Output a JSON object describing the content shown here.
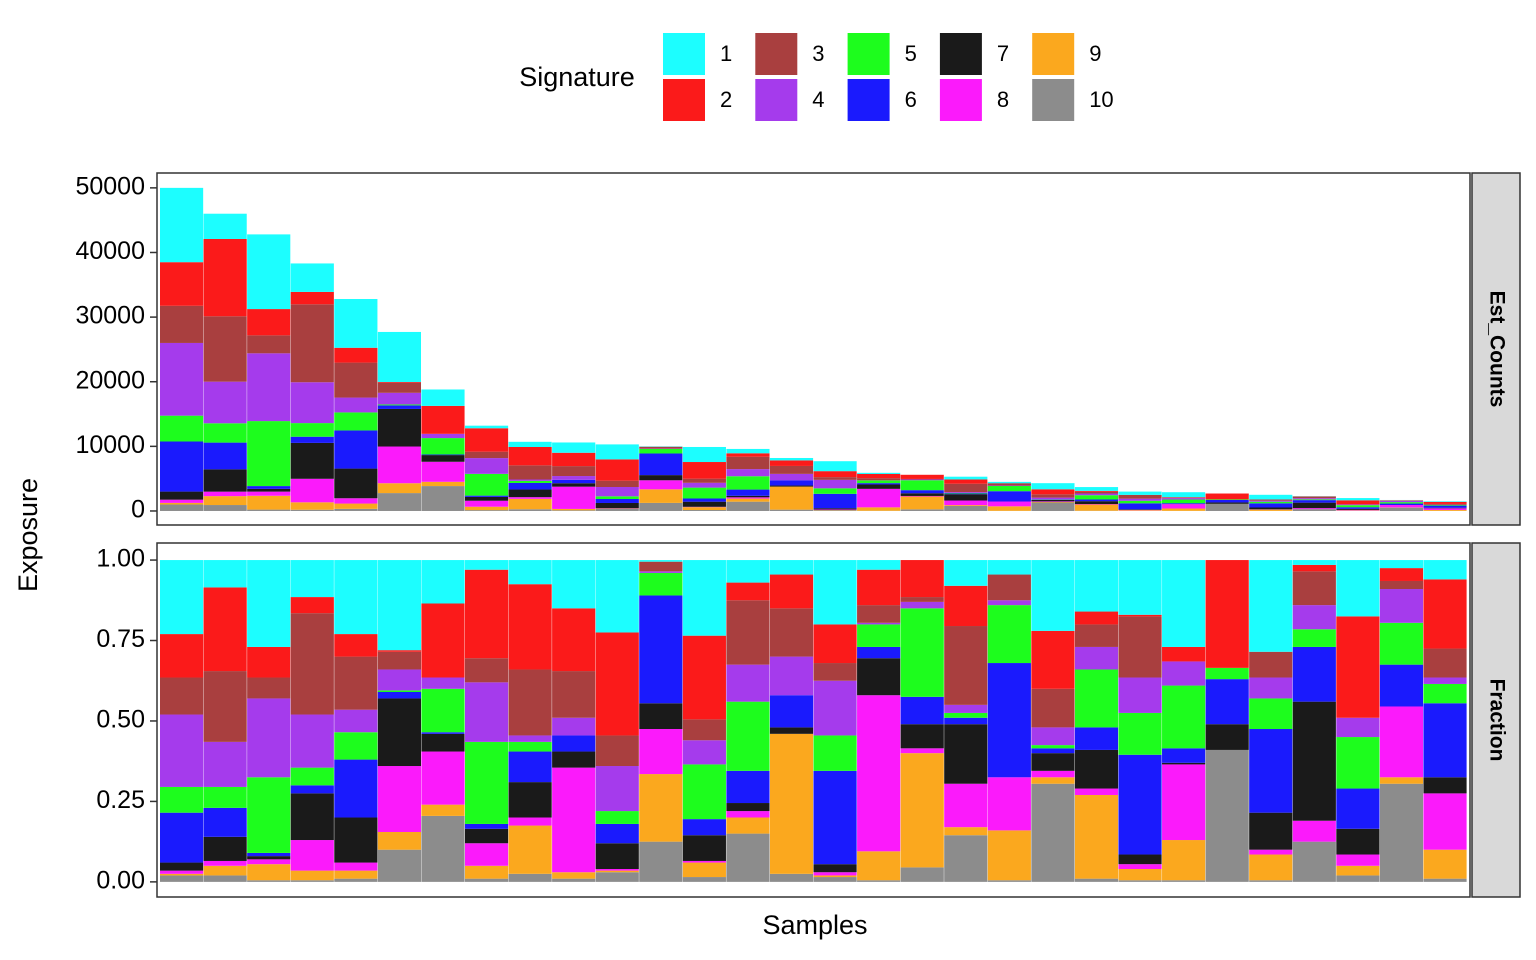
{
  "legend": {
    "title": "Signature",
    "items": [
      {
        "name": "1",
        "color": "#1cfeff"
      },
      {
        "name": "2",
        "color": "#fb1a1a"
      },
      {
        "name": "3",
        "color": "#a93f3f"
      },
      {
        "name": "4",
        "color": "#a53bec"
      },
      {
        "name": "5",
        "color": "#1dfd1d"
      },
      {
        "name": "6",
        "color": "#1a1afd"
      },
      {
        "name": "7",
        "color": "#1a1a1a"
      },
      {
        "name": "8",
        "color": "#fb1afb"
      },
      {
        "name": "9",
        "color": "#fba81e"
      },
      {
        "name": "10",
        "color": "#8c8c8c"
      }
    ]
  },
  "x_label": "Samples",
  "y_label": "Exposure",
  "chart_data": [
    {
      "type": "bar",
      "stacked": true,
      "strip": "Est_Counts",
      "ylim": [
        -2170,
        52300
      ],
      "yticks": [
        0,
        10000,
        20000,
        30000,
        40000,
        50000
      ],
      "categories": [
        null,
        null,
        null,
        null,
        null,
        null,
        null,
        null,
        null,
        null,
        null,
        null,
        null,
        null,
        null,
        null,
        null,
        null,
        null,
        null,
        null,
        null,
        null,
        null,
        null,
        null,
        null,
        null,
        null,
        null
      ],
      "series": [
        {
          "values": [
            11500,
            3910,
            11556,
            4405,
            7544,
            7756,
            2538,
            396,
            803,
            1590,
            2318,
            50,
            2327,
            672,
            369,
            1540,
            177,
            0,
            424,
            203,
            946,
            592,
            510,
            783,
            0,
            713,
            35,
            350,
            43,
            90
          ]
        },
        {
          "values": [
            6750,
            11960,
            4066,
            1915,
            2296,
            139,
            4324,
            3630,
            2836,
            2067,
            3296,
            0,
            2574,
            528,
            861,
            924,
            649,
            644,
            663,
            0,
            774,
            148,
            15,
            131,
            905,
            0,
            46,
            630,
            68,
            323
          ]
        },
        {
          "values": [
            5750,
            10120,
            2782,
            12065,
            5412,
            1524,
            0,
            990,
            2194,
            1537,
            979,
            300,
            644,
            1920,
            1230,
            424,
            325,
            84,
            1299,
            360,
            516,
            259,
            570,
            0,
            0,
            200,
            242,
            0,
            43,
            135
          ]
        },
        {
          "values": [
            11250,
            6440,
            10486,
            6320,
            2296,
            1801,
            658,
            2442,
            214,
            583,
            1442,
            50,
            743,
            1104,
            984,
            1309,
            30,
            112,
            133,
            68,
            237,
            259,
            330,
            218,
            0,
            163,
            173,
            120,
            179,
            30
          ]
        },
        {
          "values": [
            4000,
            2990,
            10058,
            2107,
            2788,
            139,
            2538,
            3366,
            321,
            0,
            412,
            700,
            1683,
            2064,
            0,
            847,
            413,
            1540,
            80,
            810,
            43,
            666,
            390,
            566,
            95,
            238,
            127,
            320,
            221,
            90
          ]
        },
        {
          "values": [
            7750,
            4140,
            428,
            958,
            5904,
            554,
            94,
            198,
            1017,
            530,
            618,
            3350,
            495,
            960,
            820,
            2233,
            207,
            476,
            106,
            1598,
            65,
            259,
            930,
            131,
            378,
            650,
            391,
            250,
            221,
            345
          ]
        },
        {
          "values": [
            1250,
            3450,
            428,
            5554,
            4592,
            5817,
            1034,
            594,
            1177,
            530,
            824,
            800,
            792,
            240,
            164,
            193,
            679,
            420,
            981,
            0,
            237,
            444,
            90,
            15,
            216,
            288,
            851,
            160,
            0,
            75
          ]
        },
        {
          "values": [
            500,
            690,
            642,
            3639,
            820,
            5679,
            3102,
            924,
            268,
            3445,
            52,
            1400,
            50,
            192,
            0,
            77,
            2862,
            84,
            716,
            743,
            86,
            74,
            45,
            682,
            0,
            38,
            150,
            70,
            374,
            263
          ]
        },
        {
          "values": [
            250,
            1380,
            2140,
            1149,
            820,
            1524,
            658,
            528,
            1605,
            212,
            52,
            2100,
            446,
            480,
            3567,
            39,
            531,
            1988,
            133,
            698,
            86,
            962,
            105,
            363,
            0,
            200,
            0,
            60,
            34,
            135
          ]
        },
        {
          "values": [
            1000,
            920,
            214,
            192,
            328,
            2770,
            3854,
            132,
            268,
            106,
            309,
            1250,
            149,
            1440,
            205,
            116,
            30,
            252,
            769,
            23,
            1312,
            37,
            15,
            15,
            1107,
            13,
            288,
            40,
            519,
            15
          ]
        }
      ]
    },
    {
      "type": "bar",
      "stacked": true,
      "strip": "Fraction",
      "ylim": [
        -0.047,
        1.053
      ],
      "yticks": [
        {
          "value": 0,
          "label": "0.00"
        },
        {
          "value": 0.25,
          "label": "0.25"
        },
        {
          "value": 0.5,
          "label": "0.50"
        },
        {
          "value": 0.75,
          "label": "0.75"
        },
        {
          "value": 1,
          "label": "1.00"
        }
      ],
      "categories": [
        null,
        null,
        null,
        null,
        null,
        null,
        null,
        null,
        null,
        null,
        null,
        null,
        null,
        null,
        null,
        null,
        null,
        null,
        null,
        null,
        null,
        null,
        null,
        null,
        null,
        null,
        null,
        null,
        null,
        null
      ],
      "series": [
        {
          "values": [
            0.23,
            0.085,
            0.27,
            0.115,
            0.23,
            0.28,
            0.135,
            0.03,
            0.075,
            0.15,
            0.225,
            0.005,
            0.235,
            0.07,
            0.045,
            0.2,
            0.03,
            0,
            0.08,
            0.045,
            0.22,
            0.16,
            0.17,
            0.27,
            0,
            0.285,
            0.015,
            0.175,
            0.025,
            0.06
          ]
        },
        {
          "values": [
            0.135,
            0.26,
            0.095,
            0.05,
            0.07,
            0.005,
            0.23,
            0.275,
            0.265,
            0.195,
            0.32,
            0,
            0.26,
            0.055,
            0.105,
            0.12,
            0.11,
            0.115,
            0.125,
            0,
            0.18,
            0.04,
            0.005,
            0.045,
            0.335,
            0,
            0.02,
            0.315,
            0.04,
            0.215
          ]
        },
        {
          "values": [
            0.115,
            0.22,
            0.065,
            0.315,
            0.165,
            0.055,
            0,
            0.075,
            0.205,
            0.145,
            0.095,
            0.03,
            0.065,
            0.2,
            0.15,
            0.055,
            0.055,
            0.015,
            0.245,
            0.08,
            0.12,
            0.07,
            0.19,
            0,
            0,
            0.08,
            0.105,
            0,
            0.025,
            0.09
          ]
        },
        {
          "values": [
            0.225,
            0.14,
            0.245,
            0.165,
            0.07,
            0.065,
            0.035,
            0.185,
            0.02,
            0.055,
            0.14,
            0.005,
            0.075,
            0.115,
            0.12,
            0.17,
            0.005,
            0.02,
            0.025,
            0.015,
            0.055,
            0.07,
            0.11,
            0.075,
            0,
            0.065,
            0.075,
            0.06,
            0.105,
            0.02
          ]
        },
        {
          "values": [
            0.08,
            0.065,
            0.235,
            0.055,
            0.085,
            0.005,
            0.135,
            0.255,
            0.03,
            0,
            0.04,
            0.07,
            0.17,
            0.215,
            0,
            0.11,
            0.07,
            0.275,
            0.015,
            0.18,
            0.01,
            0.18,
            0.13,
            0.195,
            0.035,
            0.095,
            0.055,
            0.16,
            0.13,
            0.06
          ]
        },
        {
          "values": [
            0.155,
            0.09,
            0.01,
            0.025,
            0.18,
            0.02,
            0.005,
            0.015,
            0.095,
            0.05,
            0.06,
            0.335,
            0.05,
            0.1,
            0.1,
            0.29,
            0.035,
            0.085,
            0.02,
            0.355,
            0.015,
            0.07,
            0.31,
            0.045,
            0.14,
            0.26,
            0.17,
            0.125,
            0.13,
            0.23
          ]
        },
        {
          "values": [
            0.025,
            0.075,
            0.01,
            0.145,
            0.14,
            0.21,
            0.055,
            0.045,
            0.11,
            0.05,
            0.08,
            0.08,
            0.08,
            0.025,
            0.02,
            0.025,
            0.115,
            0.075,
            0.185,
            0,
            0.055,
            0.12,
            0.03,
            0.005,
            0.08,
            0.115,
            0.37,
            0.08,
            0,
            0.05
          ]
        },
        {
          "values": [
            0.01,
            0.015,
            0.015,
            0.095,
            0.025,
            0.205,
            0.165,
            0.07,
            0.025,
            0.325,
            0.005,
            0.14,
            0.005,
            0.02,
            0,
            0.01,
            0.485,
            0.015,
            0.135,
            0.165,
            0.02,
            0.02,
            0.015,
            0.235,
            0,
            0.015,
            0.065,
            0.035,
            0.22,
            0.175
          ]
        },
        {
          "values": [
            0.005,
            0.03,
            0.05,
            0.03,
            0.025,
            0.055,
            0.035,
            0.04,
            0.15,
            0.02,
            0.005,
            0.21,
            0.045,
            0.05,
            0.435,
            0.005,
            0.09,
            0.355,
            0.025,
            0.155,
            0.02,
            0.26,
            0.035,
            0.125,
            0,
            0.08,
            0,
            0.03,
            0.02,
            0.09
          ]
        },
        {
          "values": [
            0.02,
            0.02,
            0.005,
            0.005,
            0.01,
            0.1,
            0.205,
            0.01,
            0.025,
            0.01,
            0.03,
            0.125,
            0.015,
            0.15,
            0.025,
            0.015,
            0.005,
            0.045,
            0.145,
            0.005,
            0.305,
            0.01,
            0.005,
            0.005,
            0.41,
            0.005,
            0.125,
            0.02,
            0.305,
            0.01
          ]
        }
      ]
    }
  ]
}
